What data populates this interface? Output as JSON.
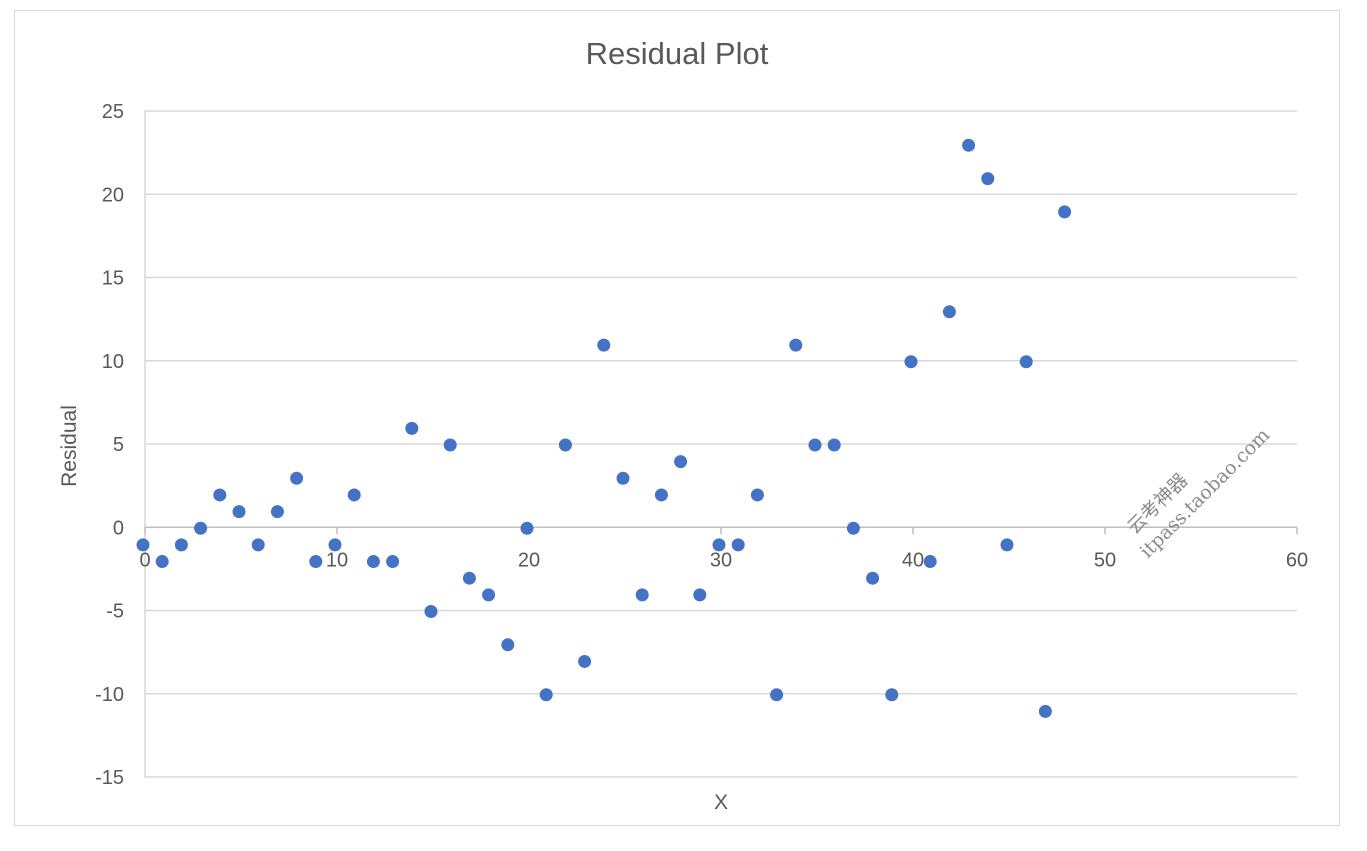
{
  "chart_data": {
    "type": "scatter",
    "title": "Residual Plot",
    "xlabel": "X",
    "ylabel": "Residual",
    "xlim": [
      0,
      60
    ],
    "ylim": [
      -15,
      25
    ],
    "xticks": [
      "0",
      "10",
      "20",
      "30",
      "40",
      "50",
      "60"
    ],
    "yticks": [
      "25",
      "20",
      "15",
      "10",
      "5",
      "0",
      "-5",
      "-10",
      "-15"
    ],
    "grid": true,
    "marker_color": "#4472c4",
    "points": [
      {
        "x": 0,
        "y": -1
      },
      {
        "x": 1,
        "y": -2
      },
      {
        "x": 2,
        "y": -1
      },
      {
        "x": 3,
        "y": 0
      },
      {
        "x": 4,
        "y": 2
      },
      {
        "x": 5,
        "y": 1
      },
      {
        "x": 6,
        "y": -1
      },
      {
        "x": 7,
        "y": 1
      },
      {
        "x": 8,
        "y": 3
      },
      {
        "x": 9,
        "y": -2
      },
      {
        "x": 10,
        "y": -1
      },
      {
        "x": 11,
        "y": 2
      },
      {
        "x": 12,
        "y": -2
      },
      {
        "x": 13,
        "y": -2
      },
      {
        "x": 14,
        "y": 6
      },
      {
        "x": 15,
        "y": -5
      },
      {
        "x": 16,
        "y": 5
      },
      {
        "x": 17,
        "y": -3
      },
      {
        "x": 18,
        "y": -4
      },
      {
        "x": 19,
        "y": -7
      },
      {
        "x": 20,
        "y": 0
      },
      {
        "x": 21,
        "y": -10
      },
      {
        "x": 22,
        "y": 5
      },
      {
        "x": 23,
        "y": -8
      },
      {
        "x": 24,
        "y": 11
      },
      {
        "x": 25,
        "y": 3
      },
      {
        "x": 26,
        "y": -4
      },
      {
        "x": 27,
        "y": 2
      },
      {
        "x": 28,
        "y": 4
      },
      {
        "x": 29,
        "y": -4
      },
      {
        "x": 30,
        "y": -1
      },
      {
        "x": 31,
        "y": -1
      },
      {
        "x": 32,
        "y": 2
      },
      {
        "x": 33,
        "y": -10
      },
      {
        "x": 34,
        "y": 11
      },
      {
        "x": 35,
        "y": 5
      },
      {
        "x": 36,
        "y": 5
      },
      {
        "x": 37,
        "y": 0
      },
      {
        "x": 38,
        "y": -3
      },
      {
        "x": 39,
        "y": -10
      },
      {
        "x": 40,
        "y": 10
      },
      {
        "x": 41,
        "y": -2
      },
      {
        "x": 42,
        "y": 13
      },
      {
        "x": 43,
        "y": 23
      },
      {
        "x": 44,
        "y": 21
      },
      {
        "x": 45,
        "y": -1
      },
      {
        "x": 46,
        "y": 10
      },
      {
        "x": 47,
        "y": -11
      },
      {
        "x": 48,
        "y": 19
      }
    ]
  },
  "watermark": {
    "line1": "云考神器",
    "line2": "itpass.taobao.com"
  }
}
